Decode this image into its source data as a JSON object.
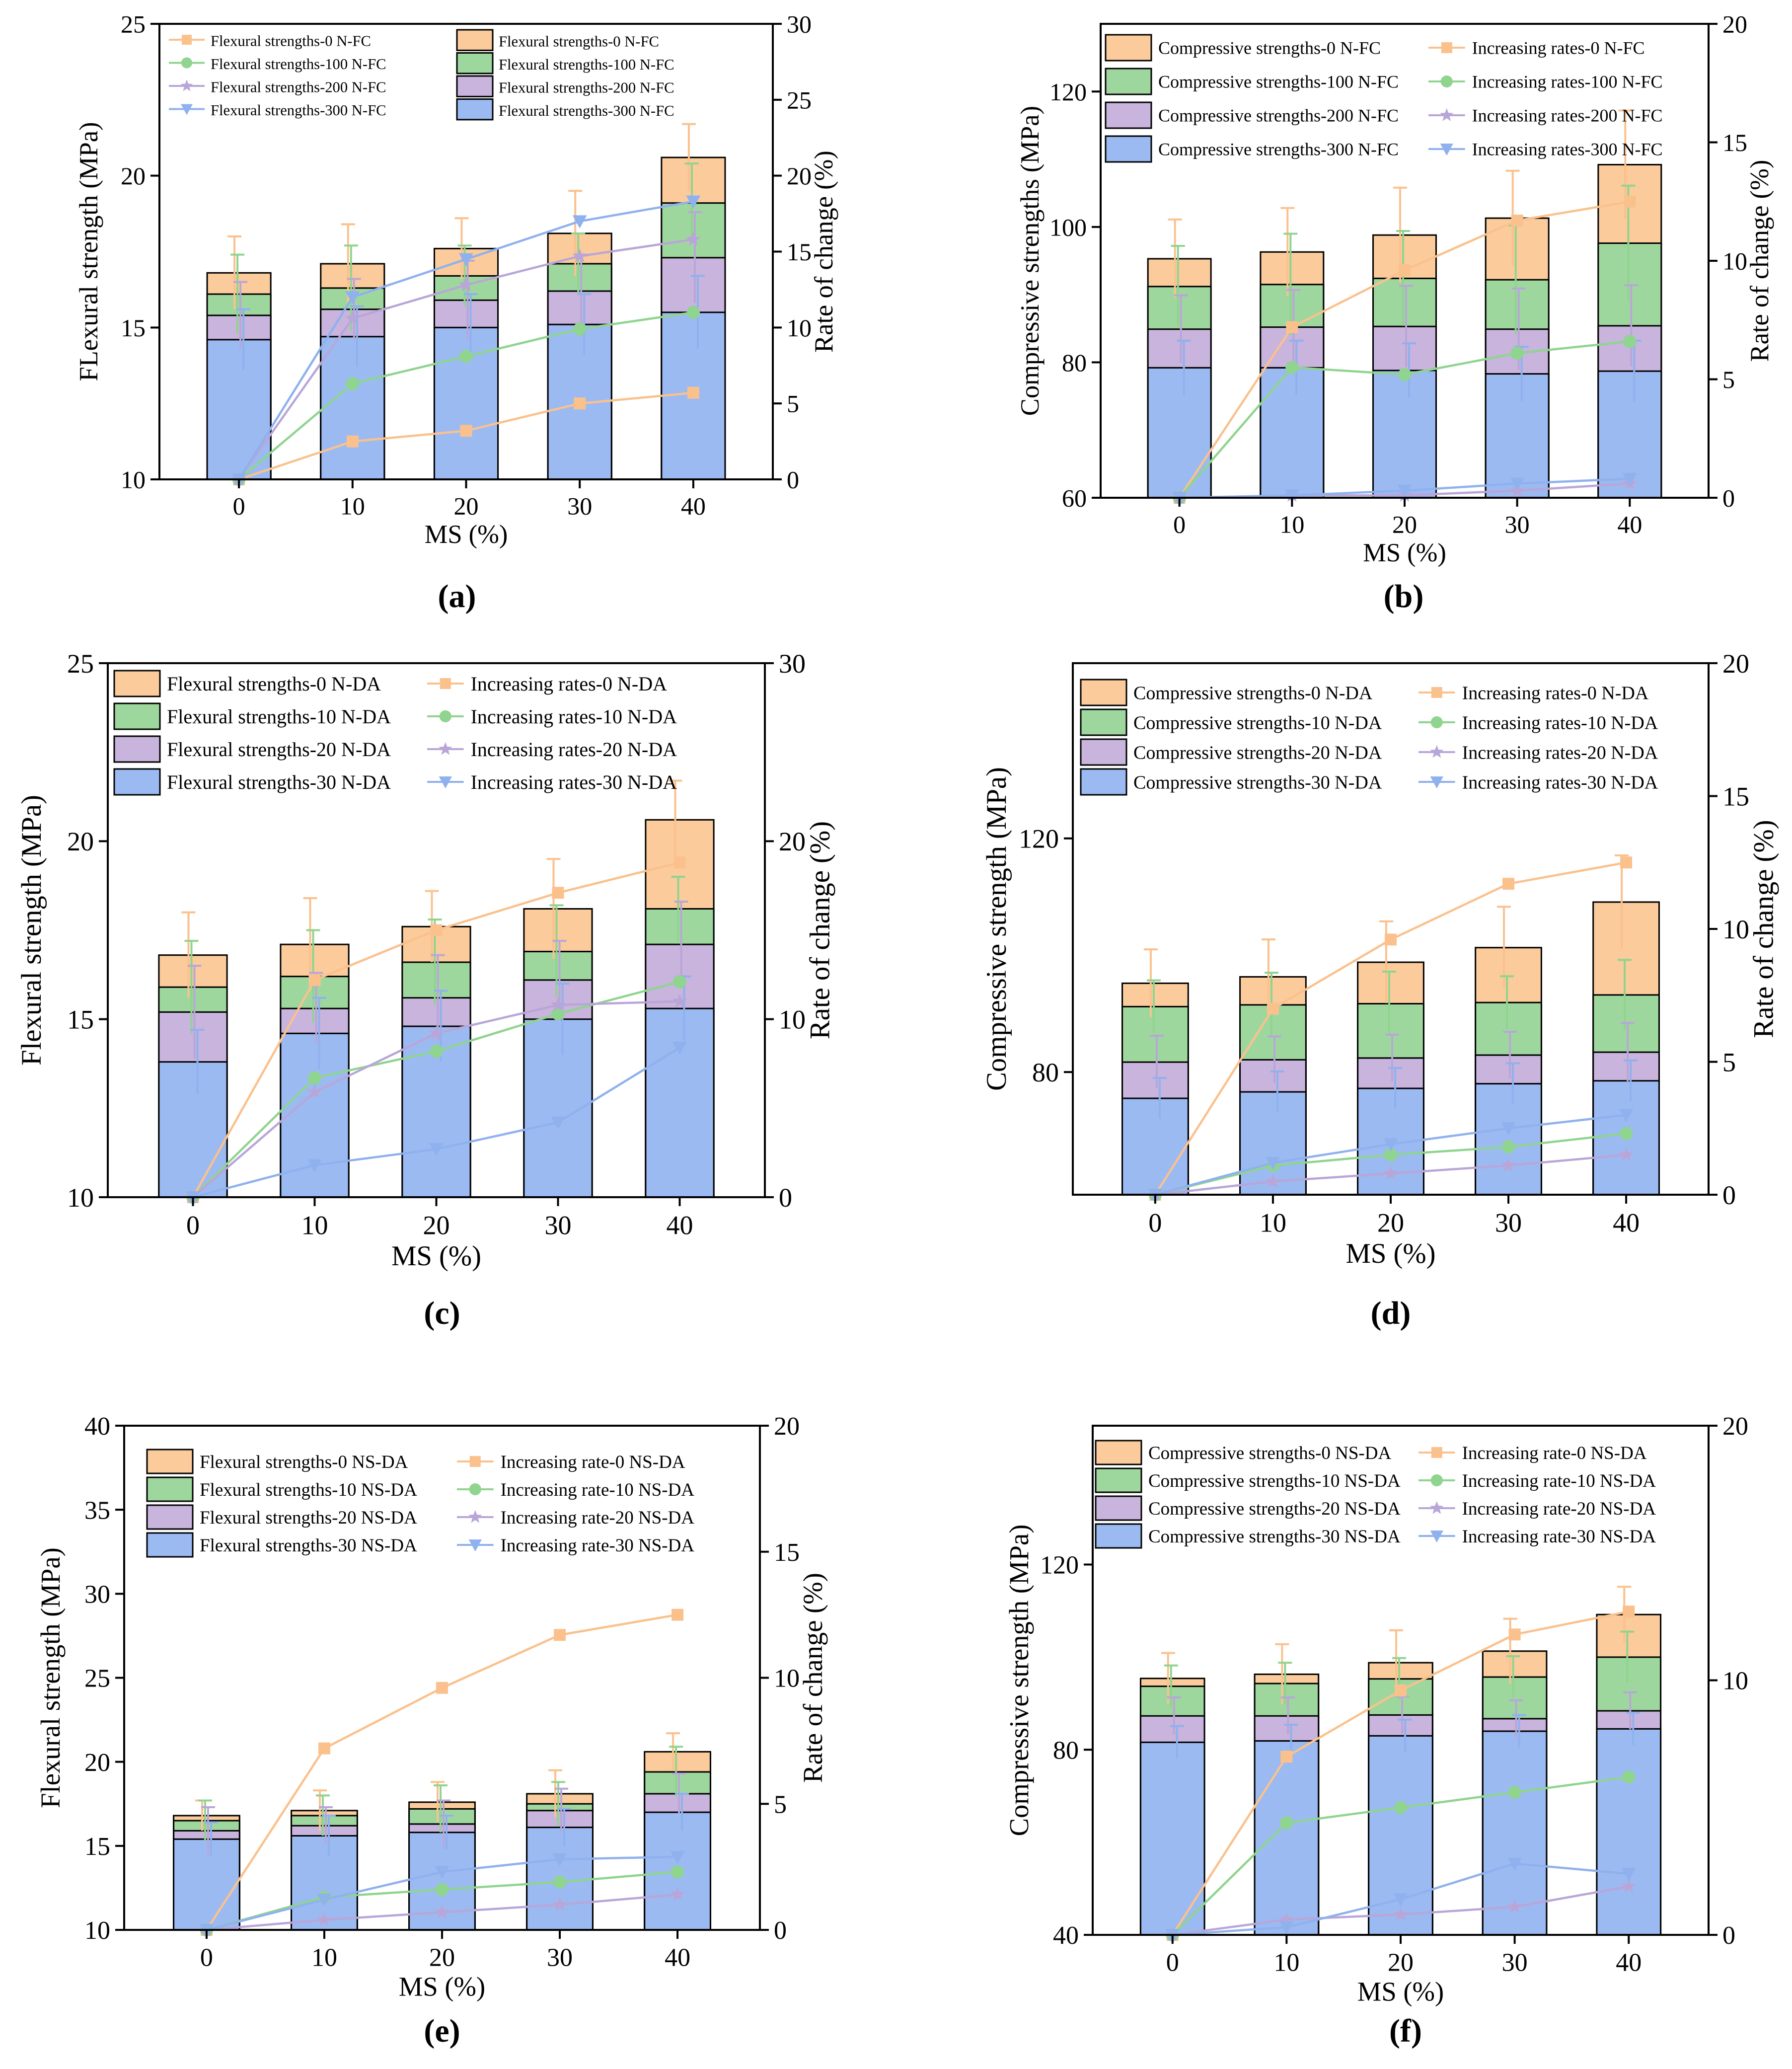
{
  "figure": {
    "panel_labels": [
      "(a)",
      "(b)",
      "(c)",
      "(d)",
      "(e)",
      "(f)"
    ]
  },
  "colors": {
    "orange_fill": "#fbcb9b",
    "green_fill": "#9ed79e",
    "purple_fill": "#c8b4dc",
    "blue_fill": "#9bbaf2",
    "orange_line": "#fac18d",
    "green_line": "#8fd48f",
    "purple_line": "#b9a6d8",
    "blue_line": "#8fb1ee"
  },
  "chart_data": [
    {
      "type": "bar",
      "panel": "(a)",
      "categories": [
        "0",
        "10",
        "20",
        "30",
        "40"
      ],
      "xlabel": "MS (%)",
      "ylabel": "FLexural strength (MPa)",
      "y2label": "Rate of change (%)",
      "ylim": [
        10,
        25
      ],
      "yticks": [
        10,
        15,
        20,
        25
      ],
      "y2lim": [
        0,
        30
      ],
      "y2ticks": [
        0,
        5,
        10,
        15,
        20,
        25,
        30
      ],
      "bar_series": [
        {
          "name": "Flexural strengths-0 N-FC",
          "color": "#fbcb9b",
          "values": [
            16.8,
            17.1,
            17.6,
            18.1,
            20.6
          ],
          "err": [
            1.2,
            1.3,
            1.0,
            1.4,
            1.1
          ]
        },
        {
          "name": "Flexural strengths-100 N-FC",
          "color": "#9ed79e",
          "values": [
            16.1,
            16.3,
            16.7,
            17.1,
            19.1
          ],
          "err": [
            1.3,
            1.4,
            1.0,
            1.0,
            1.3
          ]
        },
        {
          "name": "Flexural strengths-200 N-FC",
          "color": "#c8b4dc",
          "values": [
            15.4,
            15.6,
            15.9,
            16.2,
            17.3
          ],
          "err": [
            1.1,
            1.0,
            1.3,
            1.2,
            1.5
          ]
        },
        {
          "name": "Flexural strengths-300 N-FC",
          "color": "#9bbaf2",
          "values": [
            14.6,
            14.7,
            15.0,
            15.1,
            15.5
          ],
          "err": [
            1.0,
            1.0,
            1.1,
            1.0,
            1.2
          ]
        }
      ],
      "line_series": [
        {
          "name": "Flexural strengths-0 N-FC",
          "color": "#fac18d",
          "marker": "square",
          "values": [
            0,
            2.5,
            3.2,
            5.0,
            5.7
          ]
        },
        {
          "name": "Flexural strengths-100 N-FC",
          "color": "#8fd48f",
          "marker": "circle",
          "values": [
            0,
            6.3,
            8.1,
            9.9,
            11.0
          ]
        },
        {
          "name": "Flexural strengths-200 N-FC",
          "color": "#b9a6d8",
          "marker": "star",
          "values": [
            0,
            10.6,
            12.8,
            14.7,
            15.8
          ]
        },
        {
          "name": "Flexural strengths-300 N-FC",
          "color": "#8fb1ee",
          "marker": "triangle-down",
          "values": [
            0,
            12.0,
            14.5,
            17.0,
            18.3
          ]
        }
      ],
      "legend_bars_title_prefix": "Flexural strengths",
      "legend_placement": "top"
    },
    {
      "type": "bar",
      "panel": "(b)",
      "categories": [
        "0",
        "10",
        "20",
        "30",
        "40"
      ],
      "xlabel": "MS (%)",
      "ylabel": "Compressive strengths (MPa)",
      "y2label": "Rate of change (%)",
      "ylim": [
        60,
        130
      ],
      "yticks": [
        60,
        80,
        100,
        120
      ],
      "y2lim": [
        0,
        20
      ],
      "y2ticks": [
        0,
        5,
        10,
        15,
        20
      ],
      "bar_series": [
        {
          "name": "Compressive strengths-0 N-FC",
          "color": "#fbcb9b",
          "values": [
            95.3,
            96.3,
            98.8,
            101.3,
            109.2
          ],
          "err": [
            5.8,
            6.5,
            7.0,
            7.0,
            8.0
          ]
        },
        {
          "name": "Compressive strengths-100 N-FC",
          "color": "#9ed79e",
          "values": [
            91.2,
            91.5,
            92.4,
            92.2,
            97.6
          ],
          "err": [
            6.0,
            7.5,
            7.0,
            8.0,
            8.5
          ]
        },
        {
          "name": "Compressive strengths-200 N-FC",
          "color": "#c8b4dc",
          "values": [
            84.9,
            85.2,
            85.3,
            84.9,
            85.4
          ],
          "err": [
            5.0,
            5.5,
            6.0,
            6.0,
            6.0
          ]
        },
        {
          "name": "Compressive strengths-300 N-FC",
          "color": "#9bbaf2",
          "values": [
            79.2,
            79.2,
            78.8,
            78.3,
            78.7
          ],
          "err": [
            4.0,
            4.0,
            4.0,
            4.0,
            4.5
          ]
        }
      ],
      "line_series": [
        {
          "name": "Increasing rates-0 N-FC",
          "color": "#fac18d",
          "marker": "square",
          "values": [
            0,
            7.2,
            9.6,
            11.7,
            12.5
          ]
        },
        {
          "name": "Increasing rates-100 N-FC",
          "color": "#8fd48f",
          "marker": "circle",
          "values": [
            0,
            5.5,
            5.2,
            6.1,
            6.6
          ]
        },
        {
          "name": "Increasing rates-200 N-FC",
          "color": "#b9a6d8",
          "marker": "star",
          "values": [
            0,
            0.1,
            0.1,
            0.3,
            0.6
          ]
        },
        {
          "name": "Increasing rates-300 N-FC",
          "color": "#8fb1ee",
          "marker": "triangle-down",
          "values": [
            0,
            0.1,
            0.3,
            0.6,
            0.8
          ]
        }
      ],
      "legend_placement": "top"
    },
    {
      "type": "bar",
      "panel": "(c)",
      "categories": [
        "0",
        "10",
        "20",
        "30",
        "40"
      ],
      "xlabel": "MS (%)",
      "ylabel": "Flexural strength (MPa)",
      "y2label": "Rate of change (%)",
      "ylim": [
        10,
        25
      ],
      "yticks": [
        10,
        15,
        20,
        25
      ],
      "y2lim": [
        0,
        30
      ],
      "y2ticks": [
        0,
        10,
        20,
        30
      ],
      "bar_series": [
        {
          "name": "Flexural strengths-0 N-DA",
          "color": "#fbcb9b",
          "values": [
            16.8,
            17.1,
            17.6,
            18.1,
            20.6
          ],
          "err": [
            1.2,
            1.3,
            1.0,
            1.4,
            1.1
          ]
        },
        {
          "name": "Flexural strengths-10 N-DA",
          "color": "#9ed79e",
          "values": [
            15.9,
            16.2,
            16.6,
            16.9,
            18.1
          ],
          "err": [
            1.3,
            1.3,
            1.2,
            1.3,
            0.9
          ]
        },
        {
          "name": "Flexural strengths-20 N-DA",
          "color": "#c8b4dc",
          "values": [
            15.2,
            15.3,
            15.6,
            16.1,
            17.1
          ],
          "err": [
            1.3,
            1.0,
            1.2,
            1.1,
            1.2
          ]
        },
        {
          "name": "Flexural strengths-30 N-DA",
          "color": "#9bbaf2",
          "values": [
            13.8,
            14.6,
            14.8,
            15.0,
            15.3
          ],
          "err": [
            0.9,
            1.0,
            1.0,
            1.0,
            0.9
          ]
        }
      ],
      "line_series": [
        {
          "name": "Increasing rates-0 N-DA",
          "color": "#fac18d",
          "marker": "square",
          "values": [
            0,
            12.2,
            15.0,
            17.1,
            18.8
          ]
        },
        {
          "name": "Increasing rates-10 N-DA",
          "color": "#8fd48f",
          "marker": "circle",
          "values": [
            0,
            6.7,
            8.2,
            10.3,
            12.1
          ]
        },
        {
          "name": "Increasing rates-20 N-DA",
          "color": "#b9a6d8",
          "marker": "star",
          "values": [
            0,
            5.9,
            9.2,
            10.8,
            11.0
          ]
        },
        {
          "name": "Increasing rates-30 N-DA",
          "color": "#8fb1ee",
          "marker": "triangle-down",
          "values": [
            0,
            1.8,
            2.7,
            4.2,
            8.4
          ]
        }
      ],
      "legend_placement": "top"
    },
    {
      "type": "bar",
      "panel": "(d)",
      "categories": [
        "0",
        "10",
        "20",
        "30",
        "40"
      ],
      "xlabel": "MS (%)",
      "ylabel": "Compressive strength (MPa)",
      "y2label": "Rate of change (%)",
      "ylim": [
        59,
        150
      ],
      "yticks": [
        80,
        120
      ],
      "y2lim": [
        0,
        20
      ],
      "y2ticks": [
        0,
        5,
        10,
        15,
        20
      ],
      "bar_series": [
        {
          "name": "Compressive strengths-0 N-DA",
          "color": "#fbcb9b",
          "values": [
            95.2,
            96.3,
            98.8,
            101.3,
            109.1
          ],
          "err": [
            5.8,
            6.4,
            7.0,
            7.0,
            8.0
          ]
        },
        {
          "name": "Compressive strengths-10 N-DA",
          "color": "#9ed79e",
          "values": [
            91.2,
            91.5,
            91.7,
            91.9,
            93.2
          ],
          "err": [
            4.5,
            5.5,
            5.5,
            4.5,
            6.0
          ]
        },
        {
          "name": "Compressive strengths-20 N-DA",
          "color": "#c8b4dc",
          "values": [
            81.7,
            82.1,
            82.4,
            82.9,
            83.4
          ],
          "err": [
            4.5,
            4.0,
            4.0,
            4.0,
            5.0
          ]
        },
        {
          "name": "Compressive strengths-30 N-DA",
          "color": "#9bbaf2",
          "values": [
            75.5,
            76.6,
            77.2,
            78.0,
            78.5
          ],
          "err": [
            3.5,
            3.5,
            3.5,
            3.5,
            3.5
          ]
        }
      ],
      "line_series": [
        {
          "name": "Increasing rates-0 N-DA",
          "color": "#fac18d",
          "marker": "square",
          "values": [
            0,
            7.0,
            9.6,
            11.7,
            12.5
          ]
        },
        {
          "name": "Increasing rates-10 N-DA",
          "color": "#8fd48f",
          "marker": "circle",
          "values": [
            0,
            1.1,
            1.5,
            1.8,
            2.3
          ]
        },
        {
          "name": "Increasing rates-20 N-DA",
          "color": "#b9a6d8",
          "marker": "star",
          "values": [
            0,
            0.5,
            0.8,
            1.1,
            1.5
          ]
        },
        {
          "name": "Increasing rates-30 N-DA",
          "color": "#8fb1ee",
          "marker": "triangle-down",
          "values": [
            0,
            1.2,
            1.9,
            2.5,
            3.0
          ]
        }
      ],
      "legend_placement": "top"
    },
    {
      "type": "bar",
      "panel": "(e)",
      "categories": [
        "0",
        "10",
        "20",
        "30",
        "40"
      ],
      "xlabel": "MS (%)",
      "ylabel": "Flexural strength (MPa)",
      "y2label": "Rate of change (%)",
      "ylim": [
        10,
        40
      ],
      "yticks": [
        10,
        15,
        20,
        25,
        30,
        35,
        40
      ],
      "y2lim": [
        0,
        20
      ],
      "y2ticks": [
        0,
        5,
        10,
        15,
        20
      ],
      "bar_series": [
        {
          "name": "Flexural strengths-0 NS-DA",
          "color": "#fbcb9b",
          "values": [
            16.8,
            17.1,
            17.6,
            18.1,
            20.6
          ],
          "err": [
            0.9,
            1.2,
            1.2,
            1.4,
            1.1
          ]
        },
        {
          "name": "Flexural strengths-10 NS-DA",
          "color": "#9ed79e",
          "values": [
            16.5,
            16.8,
            17.2,
            17.5,
            19.4
          ],
          "err": [
            1.2,
            1.2,
            1.4,
            1.3,
            1.5
          ]
        },
        {
          "name": "Flexural strengths-20 NS-DA",
          "color": "#c8b4dc",
          "values": [
            15.9,
            16.2,
            16.3,
            17.1,
            18.1
          ],
          "err": [
            1.4,
            1.1,
            1.4,
            1.3,
            1.2
          ]
        },
        {
          "name": "Flexural strengths-30 NS-DA",
          "color": "#9bbaf2",
          "values": [
            15.4,
            15.6,
            15.8,
            16.1,
            17.0
          ],
          "err": [
            1.0,
            1.2,
            1.0,
            1.1,
            1.1
          ]
        }
      ],
      "line_series": [
        {
          "name": "Increasing rate-0 NS-DA",
          "color": "#fac18d",
          "marker": "square",
          "values": [
            0,
            7.2,
            9.6,
            11.7,
            12.5
          ]
        },
        {
          "name": "Increasing rate-10 NS-DA",
          "color": "#8fd48f",
          "marker": "circle",
          "values": [
            0,
            1.3,
            1.6,
            1.9,
            2.3
          ]
        },
        {
          "name": "Increasing rate-20 NS-DA",
          "color": "#b9a6d8",
          "marker": "star",
          "values": [
            0,
            0.4,
            0.7,
            1.0,
            1.4
          ]
        },
        {
          "name": "Increasing rate-30 NS-DA",
          "color": "#8fb1ee",
          "marker": "triangle-down",
          "values": [
            0,
            1.2,
            2.3,
            2.8,
            2.9
          ]
        }
      ],
      "legend_placement": "top"
    },
    {
      "type": "bar",
      "panel": "(f)",
      "categories": [
        "0",
        "10",
        "20",
        "30",
        "40"
      ],
      "xlabel": "MS (%)",
      "ylabel": "Compressive strength (MPa)",
      "y2label": "",
      "ylim": [
        40,
        150
      ],
      "yticks": [
        40,
        80,
        120
      ],
      "y2lim": [
        0,
        20
      ],
      "y2ticks": [
        0,
        10,
        20
      ],
      "bar_series": [
        {
          "name": "Compressive strengths-0 NS-DA",
          "color": "#fbcb9b",
          "values": [
            95.4,
            96.3,
            98.8,
            101.3,
            109.2
          ],
          "err": [
            5.5,
            6.5,
            7.0,
            7.0,
            6.0
          ]
        },
        {
          "name": "Compressive strengths-10 NS-DA",
          "color": "#9ed79e",
          "values": [
            93.7,
            94.3,
            95.3,
            95.7,
            100.0
          ],
          "err": [
            4.5,
            4.5,
            4.5,
            4.5,
            5.5
          ]
        },
        {
          "name": "Compressive strengths-20 NS-DA",
          "color": "#c8b4dc",
          "values": [
            87.3,
            87.3,
            87.5,
            86.7,
            88.4
          ],
          "err": [
            4.0,
            4.0,
            4.0,
            4.0,
            4.0
          ]
        },
        {
          "name": "Compressive strengths-30 NS-DA",
          "color": "#9bbaf2",
          "values": [
            81.6,
            81.9,
            83.0,
            84.0,
            84.5
          ],
          "err": [
            3.5,
            3.5,
            3.5,
            3.5,
            3.5
          ]
        }
      ],
      "line_series": [
        {
          "name": "Increasing rate-0 NS-DA",
          "color": "#fac18d",
          "marker": "square",
          "values": [
            0,
            7.0,
            9.6,
            11.8,
            12.7
          ]
        },
        {
          "name": "Increasing rate-10 NS-DA",
          "color": "#8fd48f",
          "marker": "circle",
          "values": [
            0,
            4.4,
            5.0,
            5.6,
            6.2
          ]
        },
        {
          "name": "Increasing rate-20 NS-DA",
          "color": "#b9a6d8",
          "marker": "star",
          "values": [
            0,
            0.6,
            0.8,
            1.1,
            1.9
          ]
        },
        {
          "name": "Increasing rate-30 NS-DA",
          "color": "#8fb1ee",
          "marker": "triangle-down",
          "values": [
            0,
            0.3,
            1.4,
            2.8,
            2.4
          ]
        }
      ],
      "legend_placement": "top"
    }
  ]
}
